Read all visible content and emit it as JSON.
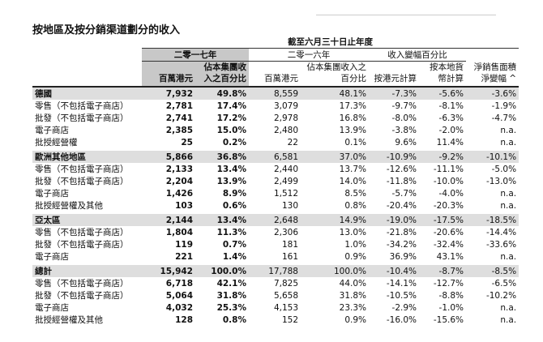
{
  "title": "按地區及按分銷渠道劃分的收入",
  "table": {
    "header": {
      "period": "截至六月三十日止年度",
      "year_a": "二零一七年",
      "year_b": "二零一六年",
      "change": "收入變幅百分比",
      "columns": [
        "百萬港元",
        "佔本集團收入之百分比",
        "百萬港元",
        "佔本集團收入之百分比",
        "按港元計算",
        "按本地貨幣計算",
        "淨銷售面積淨變幅 ^"
      ]
    },
    "sections": [
      {
        "rows": [
          [
            "德國",
            "7,932",
            "49.8%",
            "8,559",
            "48.1%",
            "-7.3%",
            "-5.6%",
            "-3.6%"
          ],
          [
            "零售（不包括電子商店）",
            "2,781",
            "17.4%",
            "3,079",
            "17.3%",
            "-9.7%",
            "-8.1%",
            "-1.9%"
          ],
          [
            "批發（不包括電子商店）",
            "2,741",
            "17.2%",
            "2,978",
            "16.8%",
            "-8.0%",
            "-6.3%",
            "-4.7%"
          ],
          [
            "電子商店",
            "2,385",
            "15.0%",
            "2,480",
            "13.9%",
            "-3.8%",
            "-2.0%",
            "n.a."
          ],
          [
            "批授經營權",
            "25",
            "0.2%",
            "22",
            "0.1%",
            "9.6%",
            "11.4%",
            "n.a."
          ]
        ]
      },
      {
        "rows": [
          [
            "歐洲其他地區",
            "5,866",
            "36.8%",
            "6,581",
            "37.0%",
            "-10.9%",
            "-9.2%",
            "-10.1%"
          ],
          [
            "零售（不包括電子商店）",
            "2,133",
            "13.4%",
            "2,440",
            "13.7%",
            "-12.6%",
            "-11.1%",
            "-5.0%"
          ],
          [
            "批發（不包括電子商店）",
            "2,204",
            "13.9%",
            "2,499",
            "14.0%",
            "-11.8%",
            "-10.0%",
            "-13.0%"
          ],
          [
            "電子商店",
            "1,426",
            "8.9%",
            "1,512",
            "8.5%",
            "-5.7%",
            "-4.0%",
            "n.a."
          ],
          [
            "批授經營權及其他",
            "103",
            "0.6%",
            "130",
            "0.8%",
            "-20.4%",
            "-20.3%",
            "n.a."
          ]
        ]
      },
      {
        "rows": [
          [
            "亞太區",
            "2,144",
            "13.4%",
            "2,648",
            "14.9%",
            "-19.0%",
            "-17.5%",
            "-18.5%"
          ],
          [
            "零售（不包括電子商店）",
            "1,804",
            "11.3%",
            "2,306",
            "13.0%",
            "-21.8%",
            "-20.6%",
            "-14.4%"
          ],
          [
            "批發（不包括電子商店）",
            "119",
            "0.7%",
            "181",
            "1.0%",
            "-34.2%",
            "-32.4%",
            "-33.6%"
          ],
          [
            "電子商店",
            "221",
            "1.4%",
            "161",
            "0.9%",
            "36.9%",
            "43.1%",
            "n.a."
          ]
        ]
      },
      {
        "rows": [
          [
            "總計",
            "15,942",
            "100.0%",
            "17,788",
            "100.0%",
            "-10.4%",
            "-8.7%",
            "-8.5%"
          ],
          [
            "零售（不包括電子商店）",
            "6,718",
            "42.1%",
            "7,825",
            "44.0%",
            "-14.1%",
            "-12.7%",
            "-6.5%"
          ],
          [
            "批發（不包括電子商店）",
            "5,064",
            "31.8%",
            "5,658",
            "31.8%",
            "-10.5%",
            "-8.8%",
            "-10.2%"
          ],
          [
            "電子商店",
            "4,032",
            "25.3%",
            "4,153",
            "23.3%",
            "-2.9%",
            "-1.0%",
            "n.a."
          ],
          [
            "批授經營權及其他",
            "128",
            "0.8%",
            "152",
            "0.9%",
            "-16.0%",
            "-15.6%",
            "n.a."
          ]
        ]
      }
    ]
  }
}
